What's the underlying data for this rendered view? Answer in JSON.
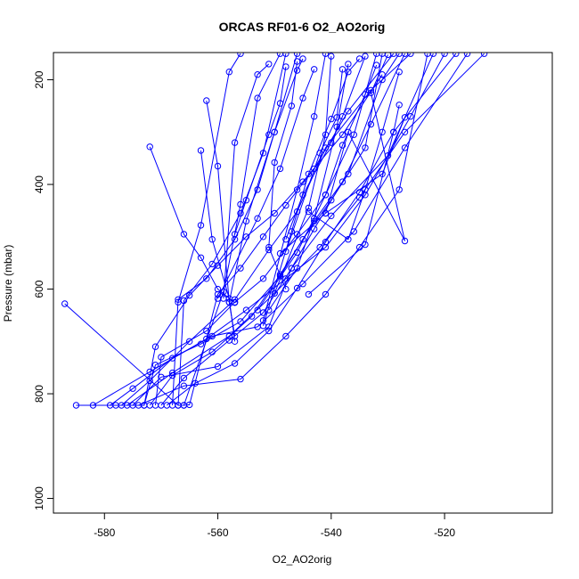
{
  "chart_data": {
    "type": "line",
    "title": "ORCAS RF01-6 O2_AO2orig",
    "xlabel": "O2_AO2orig",
    "ylabel": "Pressure (mbar)",
    "xlim": [
      -589,
      -501
    ],
    "ylim": [
      1028,
      148
    ],
    "y_reversed": true,
    "x_ticks": [
      -580,
      -560,
      -540,
      -520
    ],
    "y_ticks": [
      200,
      400,
      600,
      800,
      1000
    ],
    "grid": false,
    "legend": "none",
    "marker": "open-circle",
    "series_color": "#0000ff",
    "series": [
      {
        "points": [
          [
            -587,
            628
          ],
          [
            -567,
            822
          ],
          [
            -566,
            822
          ],
          [
            -565,
            821
          ],
          [
            -560,
            610
          ],
          [
            -556,
            560
          ],
          [
            -552,
            500
          ],
          [
            -548,
            440
          ],
          [
            -543,
            370
          ],
          [
            -537,
            260
          ],
          [
            -529,
            150
          ]
        ]
      },
      {
        "points": [
          [
            -585,
            822
          ],
          [
            -578,
            822
          ],
          [
            -573,
            822
          ],
          [
            -571,
            710
          ],
          [
            -565,
            612
          ],
          [
            -560,
            555
          ],
          [
            -555,
            500
          ],
          [
            -550,
            455
          ],
          [
            -545,
            395
          ],
          [
            -538,
            305
          ],
          [
            -531,
            190
          ]
        ]
      },
      {
        "points": [
          [
            -582,
            822
          ],
          [
            -572,
            758
          ],
          [
            -562,
            695
          ],
          [
            -555,
            640
          ],
          [
            -548,
            580
          ],
          [
            -541,
            520
          ],
          [
            -534,
            420
          ],
          [
            -526,
            270
          ],
          [
            -520,
            150
          ]
        ]
      },
      {
        "points": [
          [
            -579,
            822
          ],
          [
            -575,
            790
          ],
          [
            -568,
            732
          ],
          [
            -561,
            690
          ],
          [
            -553,
            672
          ],
          [
            -545,
            590
          ],
          [
            -536,
            490
          ],
          [
            -527,
            330
          ],
          [
            -516,
            150
          ]
        ]
      },
      {
        "points": [
          [
            -577,
            822
          ],
          [
            -572,
            775
          ],
          [
            -565,
            700
          ],
          [
            -557,
            620
          ],
          [
            -551,
            525
          ],
          [
            -546,
            452
          ],
          [
            -541,
            330
          ],
          [
            -533,
            220
          ],
          [
            -526,
            150
          ]
        ]
      },
      {
        "points": [
          [
            -576,
            822
          ],
          [
            -568,
            760
          ],
          [
            -558,
            690
          ],
          [
            -550,
            608
          ],
          [
            -542,
            520
          ],
          [
            -535,
            425
          ],
          [
            -527,
            300
          ],
          [
            -513,
            150
          ]
        ]
      },
      {
        "points": [
          [
            -575,
            822
          ],
          [
            -570,
            768
          ],
          [
            -560,
            748
          ],
          [
            -551,
            672
          ],
          [
            -547,
            560
          ],
          [
            -540,
            460
          ],
          [
            -530,
            345
          ],
          [
            -522,
            150
          ]
        ]
      },
      {
        "points": [
          [
            -574,
            822
          ],
          [
            -566,
            785
          ],
          [
            -556,
            772
          ],
          [
            -548,
            690
          ],
          [
            -541,
            610
          ],
          [
            -535,
            520
          ],
          [
            -528,
            410
          ],
          [
            -523,
            150
          ]
        ]
      },
      {
        "points": [
          [
            -573,
            822
          ],
          [
            -571,
            745
          ],
          [
            -563,
            705
          ],
          [
            -556,
            662
          ],
          [
            -549,
            575
          ],
          [
            -543,
            470
          ],
          [
            -537,
            380
          ],
          [
            -531,
            200
          ],
          [
            -528,
            150
          ]
        ]
      },
      {
        "points": [
          [
            -572,
            822
          ],
          [
            -568,
            765
          ],
          [
            -561,
            720
          ],
          [
            -554,
            652
          ],
          [
            -549,
            572
          ],
          [
            -545,
            505
          ],
          [
            -540,
            430
          ],
          [
            -534,
            330
          ],
          [
            -531,
            150
          ]
        ]
      },
      {
        "points": [
          [
            -571,
            822
          ],
          [
            -570,
            730
          ],
          [
            -562,
            680
          ],
          [
            -557,
            625
          ],
          [
            -552,
            580
          ],
          [
            -546,
            495
          ],
          [
            -541,
            420
          ],
          [
            -536,
            305
          ],
          [
            -532,
            150
          ]
        ]
      },
      {
        "points": [
          [
            -570,
            822
          ],
          [
            -566,
            770
          ],
          [
            -558,
            698
          ],
          [
            -552,
            645
          ],
          [
            -547,
            560
          ],
          [
            -543,
            485
          ],
          [
            -538,
            395
          ],
          [
            -533,
            285
          ],
          [
            -527,
            150
          ]
        ]
      },
      {
        "points": [
          [
            -569,
            822
          ],
          [
            -564,
            780
          ],
          [
            -557,
            742
          ],
          [
            -551,
            680
          ],
          [
            -546,
            598
          ],
          [
            -541,
            510
          ],
          [
            -535,
            415
          ],
          [
            -529,
            300
          ],
          [
            -518,
            150
          ]
        ]
      },
      {
        "points": [
          [
            -568,
            822
          ],
          [
            -567,
            620
          ],
          [
            -562,
            580
          ],
          [
            -557,
            505
          ],
          [
            -553,
            410
          ],
          [
            -550,
            300
          ],
          [
            -546,
            150
          ]
        ]
      },
      {
        "points": [
          [
            -567,
            822
          ],
          [
            -566,
            622
          ],
          [
            -561,
            552
          ],
          [
            -556,
            455
          ],
          [
            -552,
            340
          ],
          [
            -548,
            150
          ]
        ]
      },
      {
        "points": [
          [
            -566,
            822
          ],
          [
            -559,
            605
          ],
          [
            -556,
            438
          ],
          [
            -553,
            235
          ],
          [
            -549,
            150
          ]
        ]
      },
      {
        "points": [
          [
            -572,
            328
          ],
          [
            -566,
            495
          ],
          [
            -563,
            540
          ],
          [
            -560,
            600
          ],
          [
            -557,
            626
          ]
        ]
      },
      {
        "points": [
          [
            -562,
            240
          ],
          [
            -560,
            365
          ],
          [
            -558,
            625
          ],
          [
            -557,
            690
          ]
        ]
      },
      {
        "points": [
          [
            -563,
            335
          ],
          [
            -561,
            505
          ],
          [
            -558,
            618
          ],
          [
            -557,
            700
          ]
        ]
      },
      {
        "points": [
          [
            -556,
            150
          ],
          [
            -558,
            185
          ],
          [
            -563,
            478
          ],
          [
            -567,
            625
          ]
        ]
      },
      {
        "points": [
          [
            -551,
            170
          ],
          [
            -553,
            190
          ],
          [
            -557,
            320
          ],
          [
            -559,
            618
          ]
        ]
      },
      {
        "points": [
          [
            -545,
            160
          ],
          [
            -546,
            182
          ],
          [
            -550,
            300
          ],
          [
            -555,
            470
          ],
          [
            -558,
            625
          ]
        ]
      },
      {
        "points": [
          [
            -541,
            150
          ],
          [
            -543,
            270
          ],
          [
            -546,
            410
          ],
          [
            -552,
            660
          ]
        ]
      },
      {
        "points": [
          [
            -540,
            155
          ],
          [
            -541,
            305
          ],
          [
            -544,
            445
          ],
          [
            -550,
            608
          ]
        ]
      },
      {
        "points": [
          [
            -538,
            180
          ],
          [
            -539,
            272
          ],
          [
            -542,
            340
          ],
          [
            -548,
            528
          ]
        ]
      },
      {
        "points": [
          [
            -535,
            160
          ],
          [
            -537,
            185
          ],
          [
            -540,
            275
          ],
          [
            -544,
            380
          ],
          [
            -547,
            490
          ],
          [
            -552,
            670
          ]
        ]
      },
      {
        "points": [
          [
            -532,
            172
          ],
          [
            -534,
            228
          ],
          [
            -538,
            325
          ],
          [
            -541,
            420
          ],
          [
            -546,
            530
          ],
          [
            -553,
            640
          ]
        ]
      },
      {
        "points": [
          [
            -528,
            248
          ],
          [
            -529,
            300
          ],
          [
            -534,
            515
          ],
          [
            -544,
            610
          ]
        ]
      },
      {
        "points": [
          [
            -528,
            185
          ],
          [
            -531,
            300
          ],
          [
            -534,
            410
          ],
          [
            -537,
            505
          ],
          [
            -544,
            452
          ]
        ]
      },
      {
        "points": [
          [
            -527,
            272
          ],
          [
            -531,
            380
          ],
          [
            -541,
            455
          ],
          [
            -549,
            532
          ]
        ]
      },
      {
        "points": [
          [
            -548,
            175
          ],
          [
            -549,
            245
          ],
          [
            -551,
            305
          ],
          [
            -555,
            430
          ],
          [
            -557,
            495
          ]
        ]
      },
      {
        "points": [
          [
            -543,
            180
          ],
          [
            -545,
            235
          ],
          [
            -549,
            370
          ],
          [
            -553,
            465
          ],
          [
            -560,
            618
          ]
        ]
      },
      {
        "points": [
          [
            -537,
            170
          ],
          [
            -539,
            290
          ],
          [
            -543,
            465
          ],
          [
            -546,
            560
          ],
          [
            -551,
            640
          ]
        ]
      },
      {
        "points": [
          [
            -534,
            155
          ],
          [
            -538,
            270
          ],
          [
            -540,
            320
          ],
          [
            -545,
            420
          ],
          [
            -548,
            505
          ]
        ]
      },
      {
        "points": [
          [
            -530,
            152
          ],
          [
            -533,
            225
          ],
          [
            -527,
            508
          ],
          [
            -537,
            300
          ],
          [
            -541,
            455
          ]
        ]
      },
      {
        "points": [
          [
            -546,
            165
          ],
          [
            -547,
            250
          ],
          [
            -550,
            358
          ],
          [
            -551,
            520
          ],
          [
            -548,
            600
          ]
        ]
      }
    ]
  }
}
